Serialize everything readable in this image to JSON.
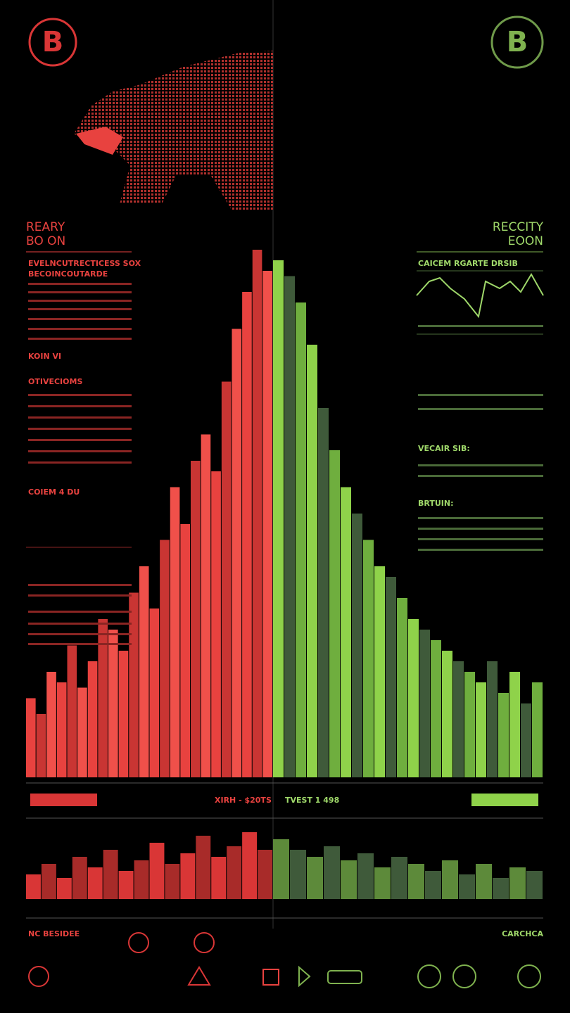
{
  "logos": {
    "left": "B",
    "right": "B"
  },
  "header": {
    "left_title": "REARY",
    "left_subtitle": "BO ON",
    "right_title": "RECCITY",
    "right_subtitle": "EOON"
  },
  "left_panel": {
    "heading1": "EVELNCUTRECTICESS SOX",
    "heading2": "BECOINCOUTARDE",
    "label1": "KOIN VI",
    "label2": "OTIVECIOMS",
    "label3": "COIEM 4 DU"
  },
  "right_panel": {
    "heading1": "CAICEM RGARTE DRSIB",
    "heading2": "VECAIR SIB:",
    "heading3": "BRTUIN:"
  },
  "ticker": {
    "left": "XIRH - $20TS",
    "right": "TVEST 1 498"
  },
  "footer": {
    "left": "NC BESIDEE",
    "right": "CARCHCA"
  },
  "main_chart": {
    "bear_values": [
      15,
      12,
      20,
      18,
      25,
      17,
      22,
      30,
      28,
      24,
      35,
      40,
      32,
      45,
      55,
      48,
      60,
      65,
      58,
      75,
      85,
      92,
      100,
      96
    ],
    "bull_values": [
      98,
      95,
      90,
      82,
      70,
      62,
      55,
      50,
      45,
      40,
      38,
      34,
      30,
      28,
      26,
      24,
      22,
      20,
      18,
      22,
      16,
      20,
      14,
      18
    ]
  },
  "lower_chart": {
    "bear_values": [
      35,
      50,
      30,
      60,
      45,
      70,
      40,
      55,
      80,
      50,
      65,
      90,
      60,
      75,
      95,
      70
    ],
    "bull_values": [
      85,
      70,
      60,
      75,
      55,
      65,
      45,
      60,
      50,
      40,
      55,
      35,
      50,
      30,
      45,
      40
    ]
  }
}
